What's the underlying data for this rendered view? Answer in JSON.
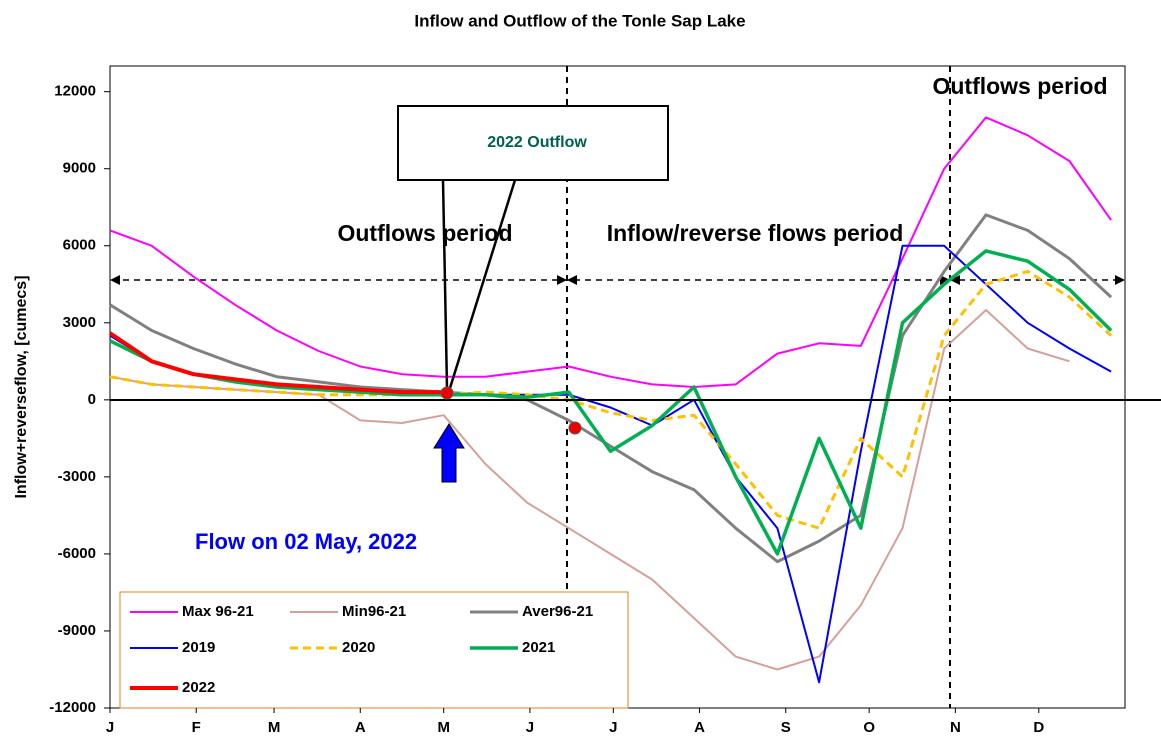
{
  "chart_data": {
    "type": "line",
    "title": "Inflow and Outflow of the Tonle Sap Lake",
    "y_label": "Inflow+reverseflow, [cumecs]",
    "xlim": [
      0,
      365
    ],
    "ylim": [
      -12000,
      13000
    ],
    "xticks": [
      {
        "value": 0,
        "label": "J"
      },
      {
        "value": 31,
        "label": "F"
      },
      {
        "value": 59,
        "label": "M"
      },
      {
        "value": 90,
        "label": "A"
      },
      {
        "value": 120,
        "label": "M"
      },
      {
        "value": 151,
        "label": "J"
      },
      {
        "value": 181,
        "label": "J"
      },
      {
        "value": 212,
        "label": "A"
      },
      {
        "value": 243,
        "label": "S"
      },
      {
        "value": 273,
        "label": "O"
      },
      {
        "value": 304,
        "label": "N"
      },
      {
        "value": 334,
        "label": "D"
      }
    ],
    "yticks": [
      -12000,
      -9000,
      -6000,
      -3000,
      0,
      3000,
      6000,
      9000,
      12000
    ],
    "x": [
      0,
      15,
      30,
      45,
      60,
      75,
      90,
      105,
      120,
      135,
      150,
      165,
      180,
      195,
      210,
      225,
      240,
      255,
      270,
      285,
      300,
      315,
      330,
      345,
      360
    ],
    "series": [
      {
        "name": "Max 96-21",
        "color": "#ff00ff",
        "width": 2,
        "dash": false,
        "values": [
          6600,
          6000,
          4800,
          3700,
          2700,
          1900,
          1300,
          1000,
          900,
          900,
          1100,
          1300,
          900,
          600,
          500,
          600,
          1800,
          2200,
          2100,
          5500,
          9000,
          11000,
          10300,
          9300,
          7000
        ]
      },
      {
        "name": "Min96-21",
        "color": "#d4a09a",
        "width": 2,
        "dash": false,
        "values": [
          900,
          600,
          500,
          400,
          300,
          200,
          -800,
          -900,
          -600,
          -2500,
          -4000,
          -5000,
          -6000,
          -7000,
          -8500,
          -10000,
          -10500,
          -10000,
          -8000,
          -5000,
          2000,
          3500,
          2000,
          1500,
          null
        ]
      },
      {
        "name": "Aver96-21",
        "color": "#808080",
        "width": 3,
        "dash": false,
        "values": [
          3700,
          2700,
          2000,
          1400,
          900,
          700,
          500,
          400,
          300,
          200,
          0,
          -800,
          -1800,
          -2800,
          -3500,
          -5000,
          -6300,
          -5500,
          -4500,
          2500,
          5000,
          7200,
          6600,
          5500,
          4000
        ]
      },
      {
        "name": "2019",
        "color": "#0000ff",
        "width": 2,
        "dash": false,
        "values": [
          2500,
          1500,
          1000,
          700,
          500,
          400,
          300,
          200,
          200,
          200,
          200,
          200,
          -300,
          -1000,
          0,
          -3000,
          -5000,
          -11000,
          -2000,
          6000,
          6000,
          4500,
          3000,
          2000,
          1100
        ]
      },
      {
        "name": "2020",
        "color": "#ffc000",
        "width": 3,
        "dash": true,
        "values": [
          900,
          600,
          500,
          400,
          300,
          200,
          200,
          200,
          200,
          300,
          200,
          0,
          -500,
          -800,
          -600,
          -2500,
          -4500,
          -5000,
          -1500,
          -3000,
          2500,
          4500,
          5000,
          4000,
          2500
        ]
      },
      {
        "name": "2021",
        "color": "#00b050",
        "width": 3.5,
        "dash": false,
        "values": [
          2300,
          1500,
          1000,
          700,
          500,
          400,
          300,
          200,
          200,
          200,
          100,
          300,
          -2000,
          -1000,
          500,
          -3000,
          -6000,
          -1500,
          -5000,
          3000,
          4500,
          5800,
          5400,
          4300,
          2700
        ]
      },
      {
        "name": "2022",
        "color": "#ff0000",
        "width": 4,
        "dash": false,
        "values": [
          2600,
          1500,
          1000,
          800,
          600,
          500,
          400,
          300,
          300,
          null,
          null,
          null,
          null,
          null,
          null,
          null,
          null,
          null,
          null,
          null,
          null,
          null,
          null,
          null,
          null
        ]
      }
    ],
    "annotations": [
      "Outflows period",
      "Inflow/reverse flows period",
      "Outflows period",
      "2022 Outflow",
      "Flow on 02 May, 2022"
    ]
  }
}
